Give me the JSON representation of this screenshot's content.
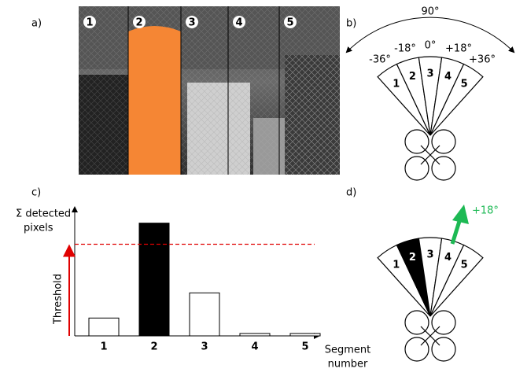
{
  "panel_a": {
    "label": "a)",
    "segments": [
      "1",
      "2",
      "3",
      "4",
      "5"
    ]
  },
  "panel_b": {
    "label": "b)",
    "span": "90°",
    "angles": [
      "-36°",
      "-18°",
      "0°",
      "+18°",
      "+36°"
    ],
    "segments": [
      "1",
      "2",
      "3",
      "4",
      "5"
    ]
  },
  "chart_data": {
    "type": "bar",
    "label": "c)",
    "y_label": [
      "Σ detected",
      "pixels"
    ],
    "x_label": [
      "Segment",
      "number"
    ],
    "categories": [
      "1",
      "2",
      "3",
      "4",
      "5"
    ],
    "values": [
      22,
      139,
      53,
      3,
      3
    ],
    "colors": [
      "#ffffff",
      "#000000",
      "#ffffff",
      "#ffffff",
      "#ffffff"
    ],
    "ylim": [
      0,
      160
    ],
    "threshold": 113,
    "threshold_label": "Threshold",
    "threshold_color": "#e00000"
  },
  "panel_d": {
    "label": "d)",
    "segments": [
      "1",
      "2",
      "3",
      "4",
      "5"
    ],
    "selected": 1,
    "arrow_label": "+18°",
    "arrow_color": "#1db954"
  }
}
